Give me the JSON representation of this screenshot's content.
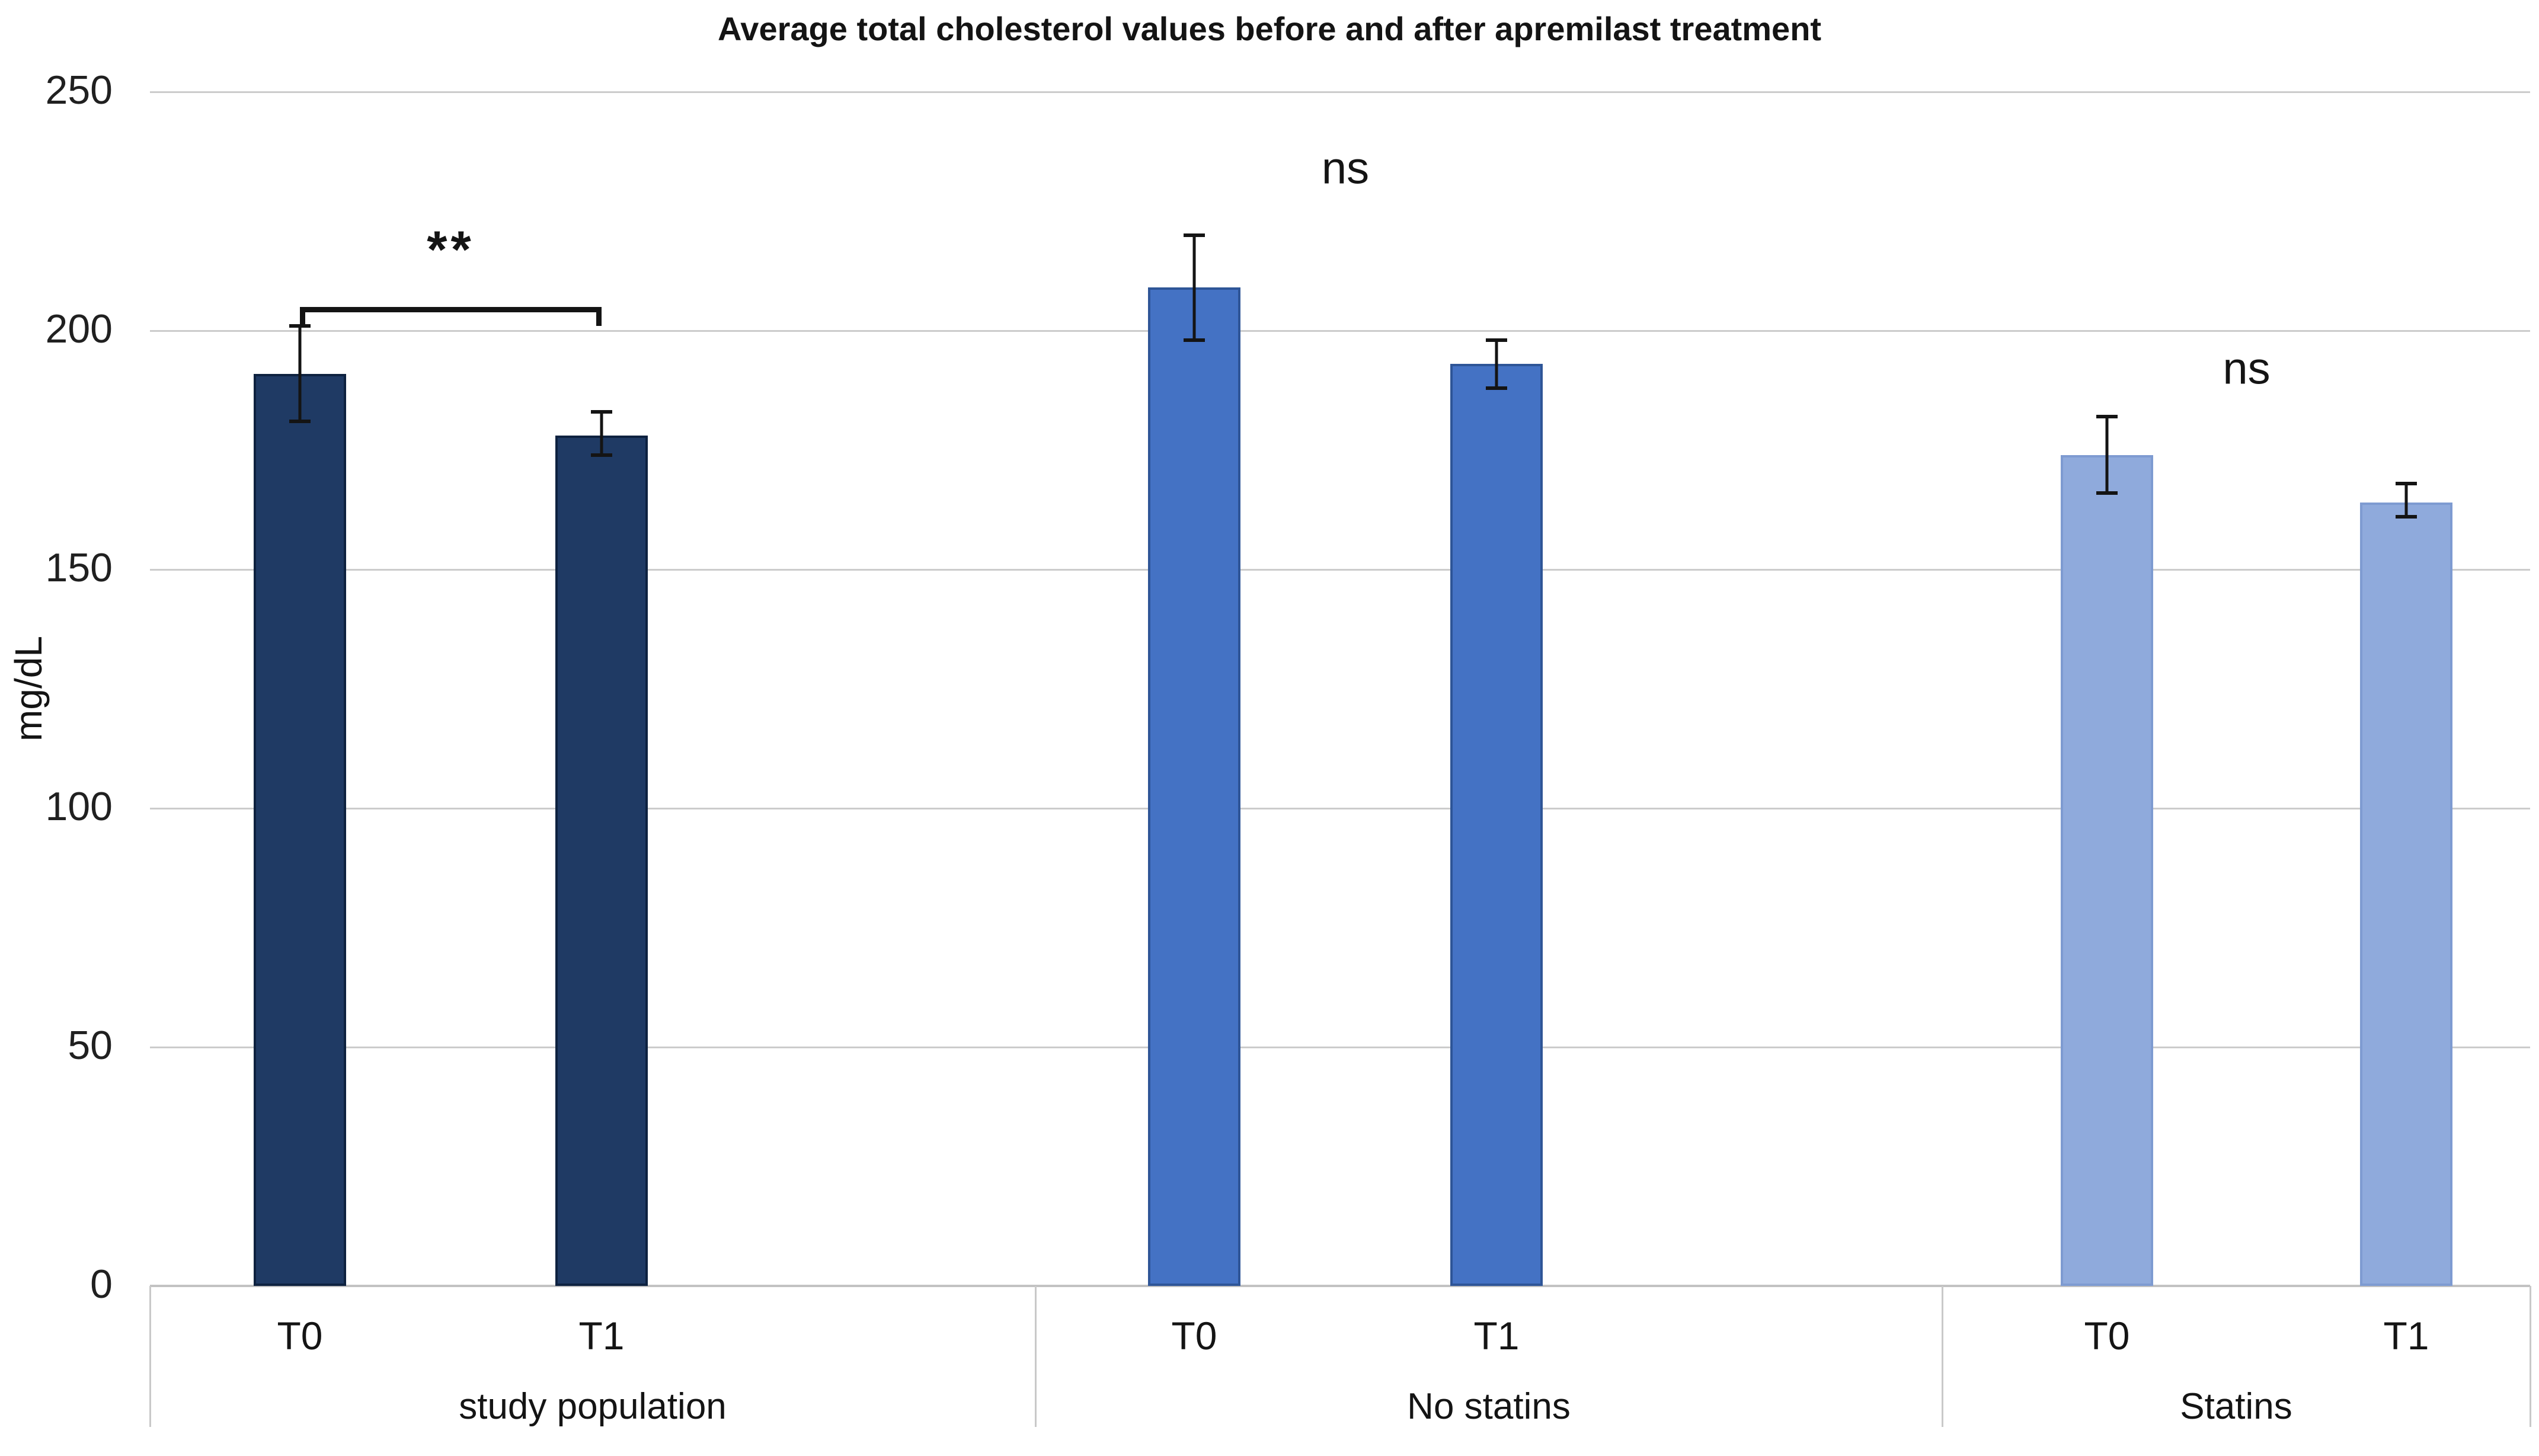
{
  "chart_data": {
    "type": "bar",
    "title": "Average total cholesterol values before and after apremilast treatment",
    "xlabel": "",
    "ylabel": "mg/dL",
    "ylim": [
      0,
      250
    ],
    "yticks": [
      0,
      50,
      100,
      150,
      200,
      250
    ],
    "grid": true,
    "legend_position": "none",
    "categories": [
      "study population",
      "No statins",
      "Statins"
    ],
    "series_labels": [
      "T0",
      "T1"
    ],
    "groups": [
      {
        "label": "study population",
        "fill": "#1f3a64",
        "border": "#0e2240",
        "bars": [
          {
            "label": "T0",
            "value": 191,
            "err_low": 181,
            "err_high": 201
          },
          {
            "label": "T1",
            "value": 178,
            "err_low": 174,
            "err_high": 183
          }
        ],
        "significance": "**",
        "sig_bracket": true,
        "sig_line_value": 205,
        "sig_text_value": 217
      },
      {
        "label": "No statins",
        "fill": "#4472c4",
        "border": "#2e5597",
        "bars": [
          {
            "label": "T0",
            "value": 209,
            "err_low": 198,
            "err_high": 220
          },
          {
            "label": "T1",
            "value": 193,
            "err_low": 188,
            "err_high": 198
          }
        ],
        "significance": "ns",
        "sig_bracket": false,
        "sig_text_value": 234
      },
      {
        "label": "Statins",
        "fill": "#8faadc",
        "border": "#7e9bd1",
        "bars": [
          {
            "label": "T0",
            "value": 174,
            "err_low": 166,
            "err_high": 182
          },
          {
            "label": "T1",
            "value": 164,
            "err_low": 161,
            "err_high": 168
          }
        ],
        "significance": "ns",
        "sig_bracket": false,
        "sig_text_value": 192
      }
    ],
    "colors": {
      "background": "#ffffff",
      "grid": "#cccccc",
      "axis": "#c2c2c2",
      "error_bar": "#141414",
      "text": "#141414"
    }
  }
}
